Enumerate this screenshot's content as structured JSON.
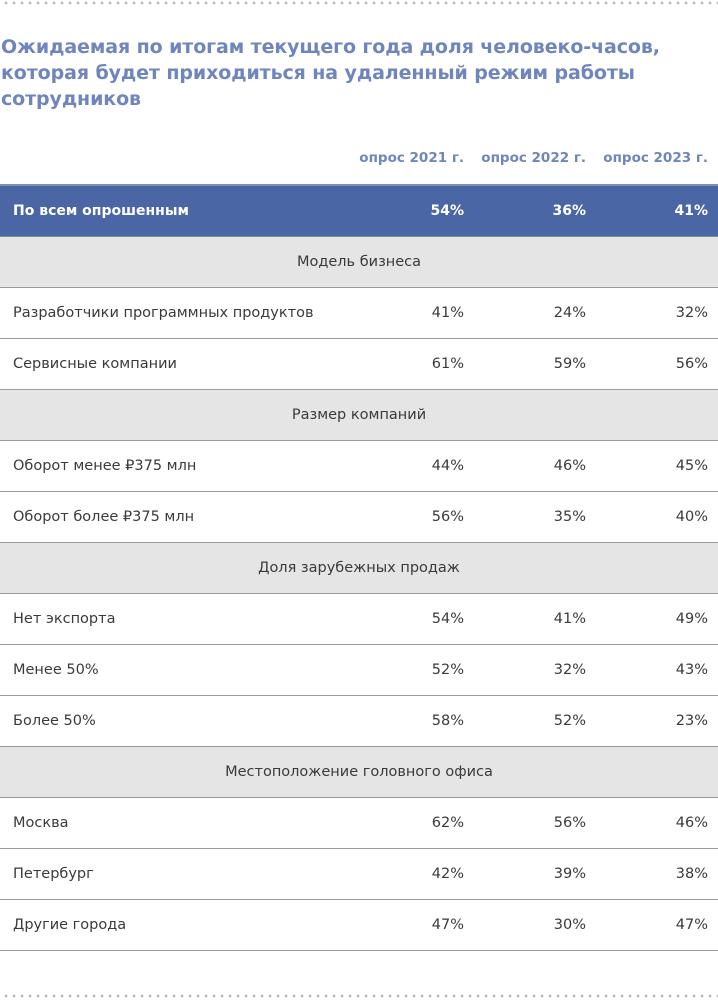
{
  "title": "Ожидаемая по итогам текущего года доля человеко-часов, которая будет приходиться на удаленный режим работы сотрудников",
  "columns": [
    "опрос 2021 г.",
    "опрос 2022 г.",
    "опрос 2023 г."
  ],
  "total": {
    "label": "По всем опрошенным",
    "values": [
      "54%",
      "36%",
      "41%"
    ]
  },
  "sections": [
    {
      "title": "Модель бизнеса",
      "rows": [
        {
          "label": "Разработчики программных продуктов",
          "values": [
            "41%",
            "24%",
            "32%"
          ]
        },
        {
          "label": "Сервисные компании",
          "values": [
            "61%",
            "59%",
            "56%"
          ]
        }
      ]
    },
    {
      "title": "Размер компаний",
      "rows": [
        {
          "label": "Оборот менее ₽375 млн",
          "values": [
            "44%",
            "46%",
            "45%"
          ]
        },
        {
          "label": "Оборот более ₽375 млн",
          "values": [
            "56%",
            "35%",
            "40%"
          ]
        }
      ]
    },
    {
      "title": "Доля зарубежных продаж",
      "rows": [
        {
          "label": "Нет экспорта",
          "values": [
            "54%",
            "41%",
            "49%"
          ]
        },
        {
          "label": "Менее 50%",
          "values": [
            "52%",
            "32%",
            "43%"
          ]
        },
        {
          "label": "Более 50%",
          "values": [
            "58%",
            "52%",
            "23%"
          ]
        }
      ]
    },
    {
      "title": "Местоположение головного офиса",
      "rows": [
        {
          "label": "Москва",
          "values": [
            "62%",
            "56%",
            "46%"
          ]
        },
        {
          "label": "Петербург",
          "values": [
            "42%",
            "39%",
            "38%"
          ]
        },
        {
          "label": "Другие города",
          "values": [
            "47%",
            "30%",
            "47%"
          ]
        }
      ]
    }
  ]
}
